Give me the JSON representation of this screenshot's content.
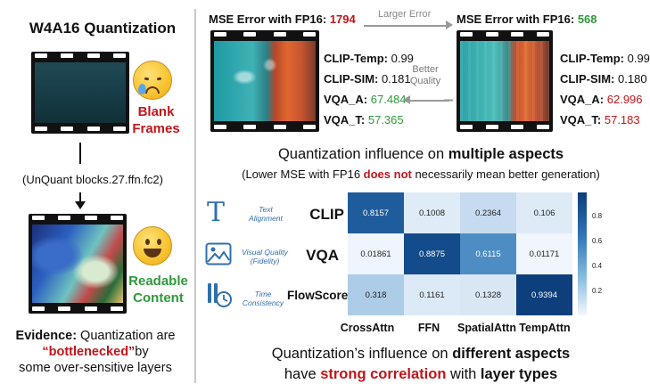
{
  "left": {
    "title": "W4A16 Quantization",
    "blank_label_line1": "Blank",
    "blank_label_line2": "Frames",
    "unquant_label": "(UnQuant blocks.27.ffn.fc2)",
    "readable_label_line1": "Readable",
    "readable_label_line2": "Content",
    "evidence_prefix": "Evidence:",
    "evidence_rest": " Quantization are",
    "evidence_highlight": "“bottlenecked”",
    "evidence_by": "by",
    "evidence_line3": "some over-sensitive layers"
  },
  "top": {
    "mse_left_prefix": "MSE Error with FP16: ",
    "mse_left_value": "1794",
    "mse_right_prefix": "MSE Error with FP16: ",
    "mse_right_value": "568",
    "larger_error": "Larger Error",
    "better_quality_line1": "Better",
    "better_quality_line2": "Quality",
    "left_metrics": [
      {
        "name": "CLIP-Temp:",
        "value": "0.99",
        "color": ""
      },
      {
        "name": "CLIP-SIM:",
        "value": "0.181",
        "color": ""
      },
      {
        "name": "VQA_A:",
        "value": "67.484",
        "color": "green"
      },
      {
        "name": "VQA_T:",
        "value": "57.365",
        "color": "green"
      }
    ],
    "right_metrics": [
      {
        "name": "CLIP-Temp:",
        "value": "0.99",
        "color": ""
      },
      {
        "name": "CLIP-SIM:",
        "value": "0.180",
        "color": ""
      },
      {
        "name": "VQA_A:",
        "value": "62.996",
        "color": "red"
      },
      {
        "name": "VQA_T:",
        "value": "57.183",
        "color": "red"
      }
    ]
  },
  "middle": {
    "line1_prefix": "Quantization influence on ",
    "line1_bold": "multiple aspects",
    "line2_prefix": "(Lower MSE with FP16 ",
    "line2_red": "does not",
    "line2_suffix": " necessarily mean better generation)"
  },
  "heatmap": {
    "rows": [
      {
        "desc_line1": "Text",
        "desc_line2": "Alignment",
        "name": "CLIP",
        "icon": "text-icon"
      },
      {
        "desc_line1": "Visual Quality",
        "desc_line2": "(Fidelity)",
        "name": "VQA",
        "icon": "image-icon"
      },
      {
        "desc_line1": "Time",
        "desc_line2": "Consistency",
        "name": "FlowScore",
        "icon": "time-icon"
      }
    ]
  },
  "chart_data": {
    "type": "heatmap",
    "rows": [
      "CLIP",
      "VQA",
      "FlowScore"
    ],
    "columns": [
      "CrossAttn",
      "FFN",
      "SpatialAttn",
      "TempAttn"
    ],
    "values": [
      [
        0.8157,
        0.1008,
        0.2364,
        0.106
      ],
      [
        0.01861,
        0.8875,
        0.6115,
        0.01171
      ],
      [
        0.318,
        0.1161,
        0.1328,
        0.9394
      ]
    ],
    "value_labels": [
      [
        "0.8157",
        "0.1008",
        "0.2364",
        "0.106"
      ],
      [
        "0.01861",
        "0.8875",
        "0.6115",
        "0.01171"
      ],
      [
        "0.318",
        "0.1161",
        "0.1328",
        "0.9394"
      ]
    ],
    "colorbar_ticks": [
      "0.8",
      "0.6",
      "0.4",
      "0.2"
    ],
    "colormap": "Blues"
  },
  "bottom": {
    "line1_prefix": "Quantization’s influence on ",
    "line1_bold": "different aspects",
    "line2_prefix": "have ",
    "line2_red": "strong correlation",
    "line2_mid": " with ",
    "line2_bold": "layer types"
  },
  "colors": {
    "red": "#c0161b",
    "green": "#2e9a3a",
    "icon_blue": "#2f6fad",
    "heat_dark": "#0b3d7a",
    "heat_light": "#f2f7fd"
  }
}
